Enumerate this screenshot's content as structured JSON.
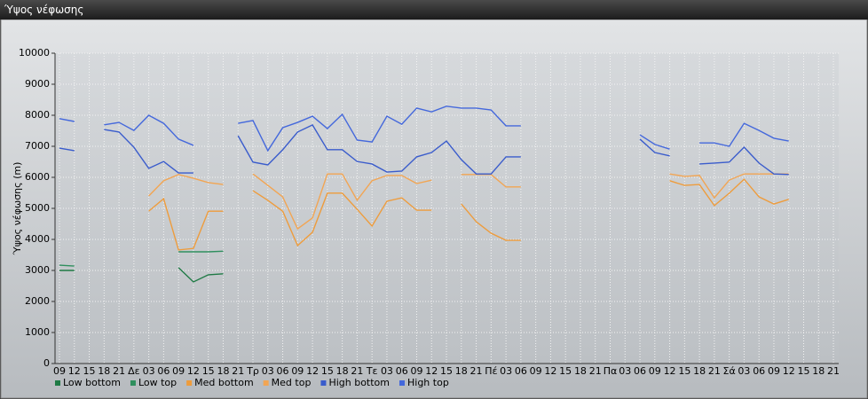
{
  "window_title": "Ύψος νέφωσης",
  "chart_data": {
    "type": "line",
    "y_label": "Ύψος νέφωσης (m)",
    "categories": [
      "09",
      "12",
      "15",
      "18",
      "21",
      "Δε",
      "03",
      "06",
      "09",
      "12",
      "15",
      "18",
      "21",
      "Τρ",
      "03",
      "06",
      "09",
      "12",
      "15",
      "18",
      "21",
      "Τε",
      "03",
      "06",
      "09",
      "12",
      "15",
      "18",
      "21",
      "Πέ",
      "03",
      "06",
      "09",
      "12",
      "15",
      "18",
      "21",
      "Πα",
      "03",
      "06",
      "09",
      "12",
      "15",
      "18",
      "21",
      "Σά",
      "03",
      "06",
      "09",
      "12",
      "15",
      "18",
      "21"
    ],
    "ylim": [
      0,
      10000
    ],
    "yticks": [
      0,
      1000,
      2000,
      3000,
      4000,
      5000,
      6000,
      7000,
      8000,
      9000,
      10000
    ],
    "grid": true,
    "series": [
      {
        "name": "Low bottom",
        "color": "#1f7a45",
        "values": [
          3000,
          3000,
          null,
          null,
          null,
          null,
          null,
          null,
          3090,
          2630,
          2860,
          2890,
          null,
          null,
          null,
          null,
          null,
          null,
          null,
          null,
          null,
          null,
          null,
          null,
          null,
          null,
          null,
          null,
          null,
          null,
          null,
          null,
          null,
          null,
          null,
          null,
          null,
          null,
          null,
          null,
          null,
          null,
          null,
          null,
          null,
          null,
          null,
          null,
          null,
          null,
          null,
          null,
          null
        ]
      },
      {
        "name": "Low top",
        "color": "#2f8f5e",
        "values": [
          3170,
          3140,
          null,
          null,
          null,
          null,
          null,
          null,
          3600,
          3600,
          3600,
          3620,
          null,
          null,
          null,
          null,
          null,
          null,
          null,
          null,
          null,
          null,
          null,
          null,
          null,
          null,
          null,
          null,
          null,
          null,
          null,
          null,
          null,
          null,
          null,
          null,
          null,
          null,
          null,
          null,
          null,
          null,
          null,
          null,
          null,
          null,
          null,
          null,
          null,
          null,
          null,
          null,
          null
        ]
      },
      {
        "name": "Med bottom",
        "color": "#ee9c3c",
        "values": [
          null,
          null,
          null,
          null,
          null,
          null,
          4910,
          5310,
          3660,
          3710,
          4910,
          4910,
          null,
          5570,
          5260,
          4910,
          3800,
          4230,
          5490,
          5490,
          4970,
          4430,
          5230,
          5340,
          4940,
          4940,
          null,
          5140,
          4570,
          4200,
          3970,
          3970,
          null,
          null,
          null,
          null,
          null,
          null,
          null,
          null,
          null,
          5890,
          5740,
          5770,
          5090,
          5490,
          5940,
          5370,
          5140,
          5290,
          null,
          null,
          null
        ]
      },
      {
        "name": "Med top",
        "color": "#f2a553",
        "values": [
          null,
          null,
          null,
          null,
          null,
          null,
          5400,
          5890,
          6090,
          5970,
          5830,
          5770,
          null,
          6110,
          5740,
          5370,
          4340,
          4690,
          6110,
          6110,
          5260,
          5890,
          6060,
          6060,
          5800,
          5910,
          null,
          6090,
          6090,
          6090,
          5690,
          5690,
          null,
          null,
          null,
          null,
          null,
          null,
          null,
          null,
          null,
          6110,
          6030,
          6060,
          5340,
          5910,
          6110,
          6110,
          6110,
          6110,
          null,
          null,
          null
        ]
      },
      {
        "name": "High bottom",
        "color": "#3a5ccc",
        "values": [
          6940,
          6860,
          null,
          7540,
          7460,
          6970,
          6290,
          6510,
          6140,
          6140,
          null,
          null,
          7340,
          6490,
          6400,
          6890,
          7460,
          7690,
          6890,
          6890,
          6510,
          6430,
          6170,
          6200,
          6660,
          6800,
          7170,
          6570,
          6110,
          6110,
          6660,
          6660,
          null,
          null,
          null,
          null,
          null,
          null,
          null,
          7230,
          6800,
          6690,
          null,
          6430,
          6460,
          6490,
          6970,
          6460,
          6110,
          6090,
          null,
          null,
          null
        ]
      },
      {
        "name": "High top",
        "color": "#4468dc",
        "values": [
          7890,
          7800,
          null,
          7690,
          7770,
          7510,
          8000,
          7740,
          7230,
          7030,
          null,
          null,
          7740,
          7830,
          6860,
          7600,
          7770,
          7970,
          7570,
          8030,
          7200,
          7140,
          7970,
          7710,
          8230,
          8110,
          8290,
          8230,
          8230,
          8170,
          7660,
          7660,
          null,
          null,
          null,
          null,
          null,
          null,
          null,
          7370,
          7060,
          6910,
          null,
          7110,
          7110,
          7000,
          7740,
          7510,
          7260,
          7170,
          null,
          null,
          null
        ]
      }
    ]
  }
}
